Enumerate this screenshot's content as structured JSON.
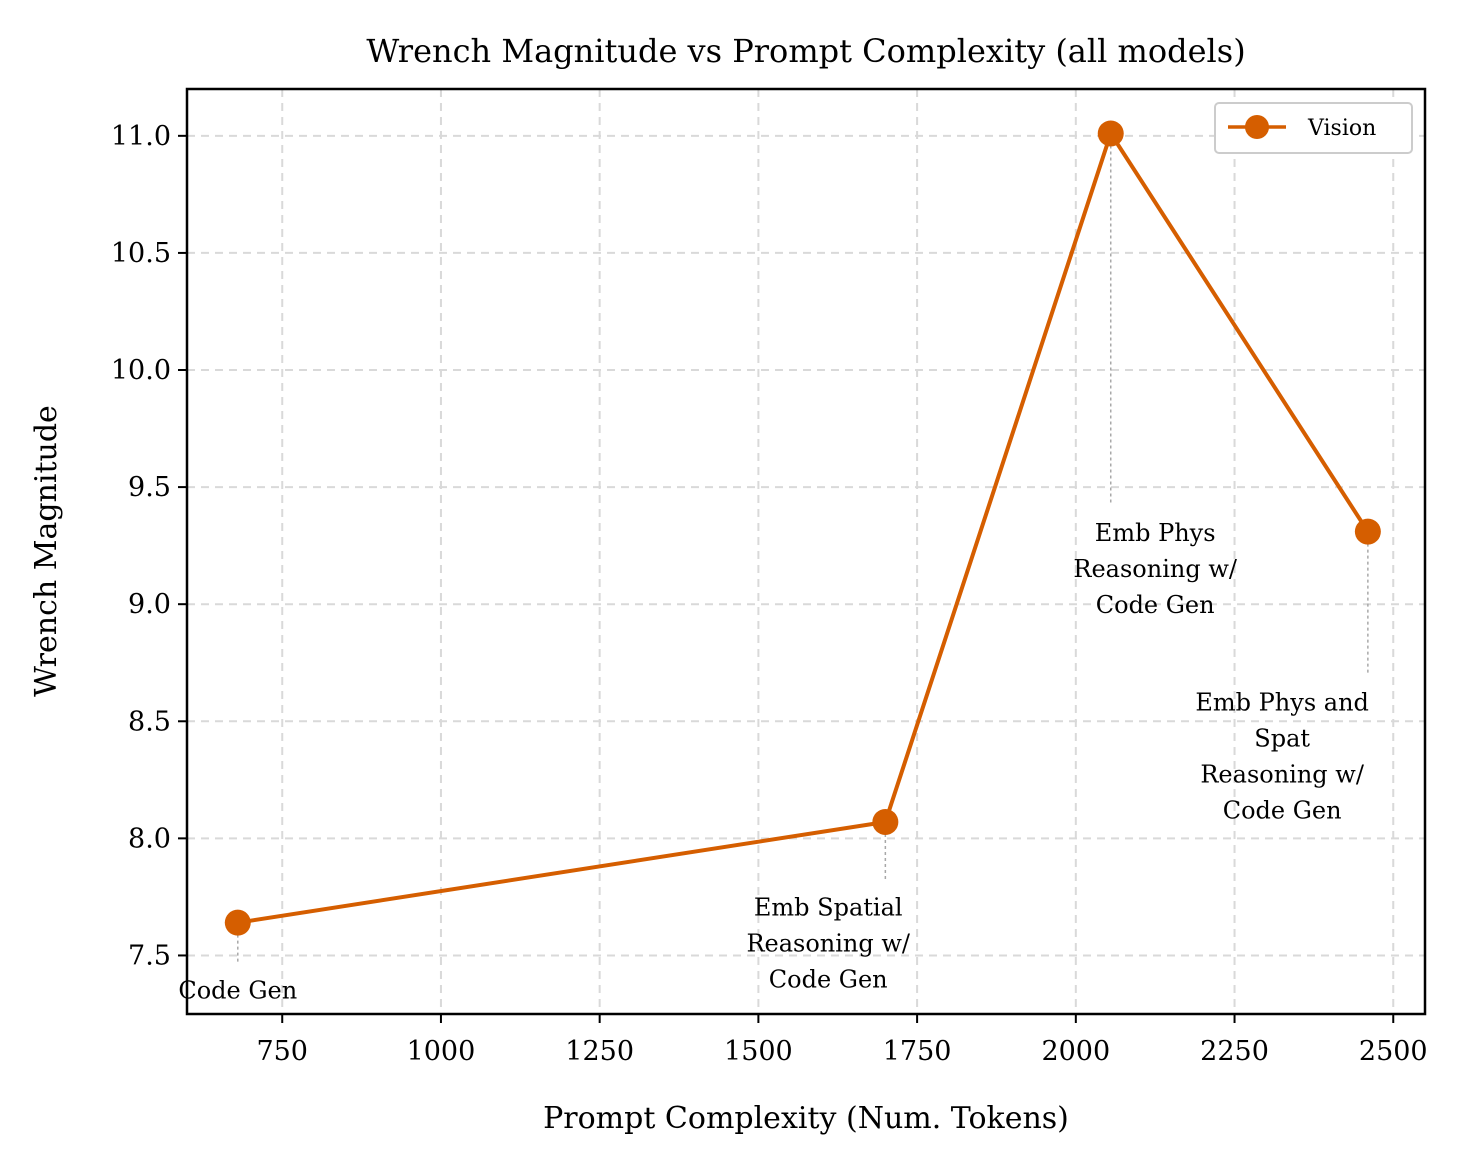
{
  "chart_data": {
    "type": "line",
    "title": "Wrench Magnitude vs Prompt Complexity (all models)",
    "xlabel": "Prompt Complexity (Num. Tokens)",
    "ylabel": "Wrench Magnitude",
    "xlim": [
      600,
      2550
    ],
    "ylim": [
      7.25,
      11.2
    ],
    "xticks": [
      750,
      1000,
      1250,
      1500,
      1750,
      2000,
      2250,
      2500
    ],
    "yticks": [
      7.5,
      8.0,
      8.5,
      9.0,
      9.5,
      10.0,
      10.5,
      11.0
    ],
    "xtick_labels": [
      "750",
      "1000",
      "1250",
      "1500",
      "1750",
      "2000",
      "2250",
      "2500"
    ],
    "ytick_labels": [
      "7.5",
      "8.0",
      "8.5",
      "9.0",
      "9.5",
      "10.0",
      "10.5",
      "11.0"
    ],
    "grid": true,
    "legend_position": "top-right",
    "series": [
      {
        "name": "Vision",
        "color": "#d55e00",
        "x": [
          680,
          1700,
          2055,
          2460
        ],
        "y": [
          7.64,
          8.07,
          11.01,
          9.31
        ]
      }
    ],
    "annotations": [
      {
        "lines": [
          "Code Gen"
        ],
        "x": 680,
        "y": 7.64,
        "text_x": 680,
        "text_y": 7.35
      },
      {
        "lines": [
          "Emb Spatial",
          "Reasoning w/",
          "Code Gen"
        ],
        "x": 1700,
        "y": 8.07,
        "text_x": 1610,
        "text_y": 7.55
      },
      {
        "lines": [
          "Emb Phys",
          "Reasoning w/",
          "Code Gen"
        ],
        "x": 2055,
        "y": 11.01,
        "text_x": 2125,
        "text_y": 9.15
      },
      {
        "lines": [
          "Emb Phys and",
          "Spat",
          "Reasoning w/",
          "Code Gen"
        ],
        "x": 2460,
        "y": 9.31,
        "text_x": 2325,
        "text_y": 8.35
      }
    ]
  }
}
